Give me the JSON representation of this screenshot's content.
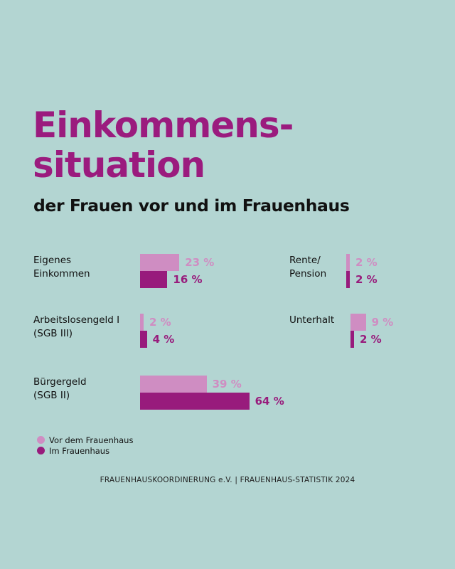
{
  "title_line1": "Einkommens-",
  "title_line2": "situation",
  "subtitle": "der Frauen vor und im Frauenhaus",
  "legend": {
    "before_label": "Vor dem Frauenhaus",
    "in_label": "Im Frauenhaus"
  },
  "footer": "FRAUENHAUSKOORDINERUNG e.V. | FRAUENHAUS-STATISTIK 2024",
  "colors": {
    "title": "#9b1b7e",
    "before": "#cf8dc2",
    "in": "#981b7c",
    "background": "#b3d5d2"
  },
  "chart_data": {
    "type": "bar",
    "orientation": "horizontal",
    "title": "Einkommenssituation",
    "subtitle": "der Frauen vor und im Frauenhaus",
    "unit": "%",
    "series": [
      {
        "name": "Vor dem Frauenhaus",
        "values": [
          23,
          2,
          39,
          2,
          9
        ]
      },
      {
        "name": "Im Frauenhaus",
        "values": [
          16,
          4,
          64,
          2,
          2
        ]
      }
    ],
    "categories": [
      {
        "label": "Eigenes\nEinkommen",
        "before": 23,
        "before_label": "23 %",
        "in": 16,
        "in_label": "16 %"
      },
      {
        "label": "Arbeitslosengeld I\n(SGB III)",
        "before": 2,
        "before_label": "2 %",
        "in": 4,
        "in_label": "4 %"
      },
      {
        "label": "Bürgergeld\n(SGB II)",
        "before": 39,
        "before_label": "39 %",
        "in": 64,
        "in_label": "64 %"
      },
      {
        "label": "Rente/\nPension",
        "before": 2,
        "before_label": "2 %",
        "in": 2,
        "in_label": "2 %"
      },
      {
        "label": "Unterhalt",
        "before": 9,
        "before_label": "9 %",
        "in": 2,
        "in_label": "2 %"
      }
    ],
    "legend_position": "bottom-left"
  }
}
